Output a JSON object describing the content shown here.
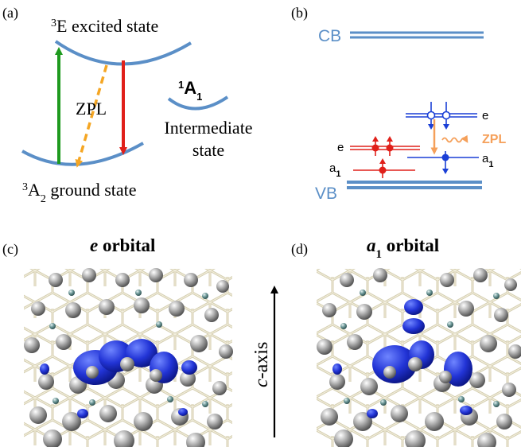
{
  "panels": {
    "a": {
      "label": "(a)",
      "excited_state": {
        "sup": "3",
        "name": "E excited state"
      },
      "ground_state": {
        "sup": "3",
        "name": "A",
        "sub": "2",
        "suffix": " ground state"
      },
      "zpl": "ZPL",
      "intermediate": {
        "sup": "1",
        "name": "A",
        "sub": "1",
        "line1": "Intermediate",
        "line2": "state"
      },
      "colors": {
        "curve": "#5b8fc7",
        "absorb": "#1e9a1e",
        "emit": "#e0201a",
        "zpl": "#f5a623"
      }
    },
    "b": {
      "label": "(b)",
      "cb": "CB",
      "vb": "VB",
      "left_e": "e",
      "left_a1": {
        "name": "a",
        "sub": "1"
      },
      "right_e": "e",
      "right_a1": {
        "name": "a",
        "sub": "1"
      },
      "zpl": "ZPL",
      "colors": {
        "band": "#5b8fc7",
        "spin_up": "#e0201a",
        "spin_down": "#1a3fd6",
        "zpl": "#f5a05a"
      }
    },
    "c": {
      "label": "(c)",
      "title_italic": "e",
      "title_rest": " orbital"
    },
    "d": {
      "label": "(d)",
      "title_italic": "a",
      "title_sub": "1",
      "title_rest": " orbital"
    },
    "axis": {
      "label_italic": "c",
      "label_rest": "-axis"
    }
  }
}
